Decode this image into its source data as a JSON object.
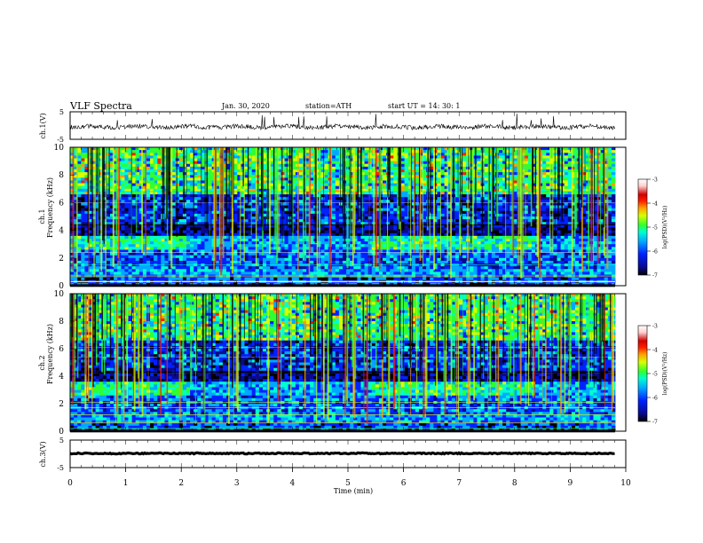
{
  "header": {
    "title": "VLF  Spectra",
    "date": "Jan. 30, 2020",
    "station": "station=ATH",
    "start": "start  UT  =   14: 30: 1"
  },
  "colors": {
    "axis": "#000000",
    "spectrogram_bg": "#0a1aa8",
    "colormap": [
      "#000000",
      "#0a0a8c",
      "#0022ff",
      "#00a8ff",
      "#00ffd0",
      "#30ff30",
      "#d8ff00",
      "#ffa000",
      "#ff2000",
      "#d00000",
      "#ffd0d0",
      "#ffffff"
    ]
  },
  "chart_data": [
    {
      "type": "line",
      "name": "ch1-waveform",
      "ylabel": "ch.1(V)",
      "ylim": [
        -5,
        5
      ],
      "yticks": [
        "5",
        "-5"
      ],
      "xlim": [
        0,
        10
      ]
    },
    {
      "type": "heatmap",
      "name": "ch1-spectrogram",
      "ylabel_top": "ch.1",
      "ylabel": "Frequency (kHz)",
      "ylim": [
        0,
        10
      ],
      "yticks": [
        "0",
        "2",
        "4",
        "6",
        "8",
        "10"
      ],
      "xlim": [
        0,
        10
      ],
      "colorbar": {
        "label": "log(PSD)(V²/Hz)",
        "range": [
          -7,
          -3
        ],
        "ticks": [
          "-3",
          "-4",
          "-5",
          "-6",
          "-7"
        ]
      }
    },
    {
      "type": "heatmap",
      "name": "ch2-spectrogram",
      "ylabel_top": "ch.2",
      "ylabel": "Frequency (kHz)",
      "ylim": [
        0,
        10
      ],
      "yticks": [
        "0",
        "2",
        "4",
        "6",
        "8",
        "10"
      ],
      "xlim": [
        0,
        10
      ],
      "colorbar": {
        "label": "log(PSD)(V²/Hz)",
        "range": [
          -7,
          -3
        ],
        "ticks": [
          "-3",
          "-4",
          "-5",
          "-6",
          "-7"
        ]
      }
    },
    {
      "type": "line",
      "name": "ch3-waveform",
      "ylabel": "ch.3(V)",
      "ylim": [
        -5,
        5
      ],
      "yticks": [
        "5",
        "-5"
      ],
      "xlim": [
        0,
        10
      ],
      "xlabel": "Time  (min)",
      "xticks": [
        "0",
        "1",
        "2",
        "3",
        "4",
        "5",
        "6",
        "7",
        "8",
        "9",
        "10"
      ]
    }
  ]
}
